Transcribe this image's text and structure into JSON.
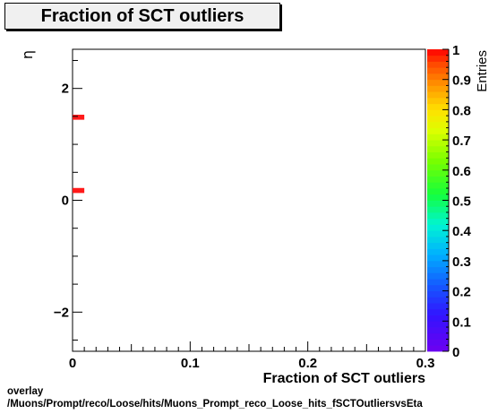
{
  "chart_data": {
    "type": "heatmap",
    "title": "Fraction of SCT outliers",
    "xlabel": "Fraction of SCT outliers",
    "ylabel": "η",
    "zlabel": "Entries",
    "xlim": [
      0,
      0.3
    ],
    "ylim": [
      -2.7,
      2.7
    ],
    "zlim": [
      0,
      1
    ],
    "x_ticks": [
      {
        "v": 0,
        "label": "0"
      },
      {
        "v": 0.1,
        "label": "0.1"
      },
      {
        "v": 0.2,
        "label": "0.2"
      },
      {
        "v": 0.3,
        "label": "0.3"
      }
    ],
    "y_ticks": [
      {
        "v": -2,
        "label": "−2"
      },
      {
        "v": 0,
        "label": "0"
      },
      {
        "v": 2,
        "label": "2"
      }
    ],
    "z_ticks": [
      {
        "v": 0,
        "label": "0"
      },
      {
        "v": 0.1,
        "label": "0.1"
      },
      {
        "v": 0.2,
        "label": "0.2"
      },
      {
        "v": 0.3,
        "label": "0.3"
      },
      {
        "v": 0.4,
        "label": "0.4"
      },
      {
        "v": 0.5,
        "label": "0.5"
      },
      {
        "v": 0.6,
        "label": "0.6"
      },
      {
        "v": 0.7,
        "label": "0.7"
      },
      {
        "v": 0.8,
        "label": "0.8"
      },
      {
        "v": 0.9,
        "label": "0.9"
      },
      {
        "v": 1,
        "label": "1"
      }
    ],
    "cells": [
      {
        "x0": 0,
        "x1": 0.01,
        "y0": 1.44,
        "y1": 1.53,
        "z": 1
      },
      {
        "x0": 0,
        "x1": 0.01,
        "y0": 0.13,
        "y1": 0.22,
        "z": 1
      }
    ],
    "cell_color": "#ff1a1a"
  },
  "footer": {
    "line1": "overlay",
    "line2": "/Muons/Prompt/reco/Loose/hits/Muons_Prompt_reco_Loose_hits_fSCTOutliersvsEta"
  }
}
